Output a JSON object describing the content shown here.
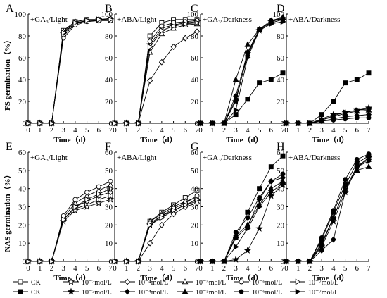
{
  "figure": {
    "ylabel_top": "FS germination（%）",
    "ylabel_bottom": "NAS germination（%）",
    "xlabel": "Time（d）",
    "x_ticks": [
      "0",
      "1",
      "2",
      "3",
      "4",
      "5",
      "6",
      "7"
    ],
    "y_ticks_top": [
      "0",
      "20",
      "40",
      "60",
      "80",
      "100"
    ],
    "y_ticks_bottom": [
      "0",
      "10",
      "20",
      "30",
      "40",
      "50",
      "60"
    ]
  },
  "legend": {
    "rows": [
      [
        {
          "marker": "open-square",
          "label": "CK"
        },
        {
          "marker": "open-star",
          "label": "10⁻³mol/L"
        },
        {
          "marker": "open-diamond",
          "label": "10⁻⁴mol/L"
        },
        {
          "marker": "open-triangle-up",
          "label": "10⁻⁵mol/L"
        },
        {
          "marker": "open-circle",
          "label": "10⁻⁶mol/L"
        },
        {
          "marker": "open-triangle-right",
          "label": "10⁻⁷mol/L"
        }
      ],
      [
        {
          "marker": "filled-square",
          "label": "CK"
        },
        {
          "marker": "filled-star",
          "label": "10⁻³mol/L"
        },
        {
          "marker": "filled-diamond",
          "label": "10⁻⁴mol/L"
        },
        {
          "marker": "filled-triangle-up",
          "label": "10⁻⁵mol/L"
        },
        {
          "marker": "filled-circle",
          "label": "10⁻⁶mol/L"
        },
        {
          "marker": "filled-triangle-right",
          "label": "10⁻⁷mol/L"
        }
      ]
    ]
  },
  "chart_data": [
    {
      "panel": "A",
      "title": "+GA₃/Light",
      "type": "line",
      "ylim": [
        0,
        100
      ],
      "xlim": [
        0,
        7
      ],
      "x": [
        0,
        1,
        2,
        3,
        4,
        5,
        6,
        7
      ],
      "series": [
        {
          "marker": "open-square",
          "values": [
            0,
            0,
            0,
            85,
            93,
            95,
            95,
            95
          ]
        },
        {
          "marker": "open-star",
          "values": [
            0,
            0,
            0,
            82,
            92,
            94,
            95,
            95
          ]
        },
        {
          "marker": "open-diamond",
          "values": [
            0,
            0,
            0,
            80,
            91,
            94,
            94,
            95
          ]
        },
        {
          "marker": "open-triangle-up",
          "values": [
            0,
            0,
            0,
            84,
            93,
            95,
            95,
            96
          ]
        },
        {
          "marker": "open-circle",
          "values": [
            0,
            0,
            0,
            78,
            90,
            93,
            94,
            94
          ]
        },
        {
          "marker": "open-triangle-right",
          "values": [
            0,
            0,
            0,
            83,
            92,
            94,
            95,
            95
          ]
        }
      ]
    },
    {
      "panel": "B",
      "title": "+ABA/Light",
      "type": "line",
      "ylim": [
        0,
        100
      ],
      "xlim": [
        0,
        7
      ],
      "x": [
        0,
        1,
        2,
        3,
        4,
        5,
        6,
        7
      ],
      "series": [
        {
          "marker": "open-square",
          "values": [
            0,
            0,
            0,
            80,
            92,
            95,
            95,
            95
          ]
        },
        {
          "marker": "open-star",
          "values": [
            0,
            0,
            0,
            72,
            87,
            90,
            92,
            93
          ]
        },
        {
          "marker": "open-diamond",
          "values": [
            0,
            0,
            0,
            39,
            56,
            70,
            78,
            84
          ]
        },
        {
          "marker": "open-triangle-up",
          "values": [
            0,
            0,
            0,
            65,
            82,
            87,
            90,
            91
          ]
        },
        {
          "marker": "open-circle",
          "values": [
            0,
            0,
            0,
            75,
            89,
            92,
            93,
            94
          ]
        },
        {
          "marker": "open-triangle-right",
          "values": [
            0,
            0,
            0,
            70,
            85,
            89,
            91,
            92
          ]
        }
      ]
    },
    {
      "panel": "C",
      "title": "+GA₃/Darkness",
      "type": "line",
      "ylim": [
        0,
        100
      ],
      "xlim": [
        0,
        7
      ],
      "x": [
        0,
        1,
        2,
        3,
        4,
        5,
        6,
        7
      ],
      "series": [
        {
          "marker": "filled-square",
          "values": [
            0,
            0,
            0,
            8,
            22,
            37,
            40,
            46
          ]
        },
        {
          "marker": "filled-star",
          "values": [
            0,
            0,
            0,
            20,
            64,
            85,
            93,
            96
          ]
        },
        {
          "marker": "filled-diamond",
          "values": [
            0,
            0,
            0,
            25,
            65,
            86,
            92,
            95
          ]
        },
        {
          "marker": "filled-triangle-up",
          "values": [
            0,
            0,
            0,
            40,
            72,
            86,
            94,
            97
          ]
        },
        {
          "marker": "filled-circle",
          "values": [
            0,
            0,
            0,
            22,
            62,
            86,
            94,
            96
          ]
        },
        {
          "marker": "filled-triangle-right",
          "values": [
            0,
            0,
            0,
            12,
            60,
            85,
            91,
            93
          ]
        }
      ]
    },
    {
      "panel": "D",
      "title": "+ABA/Darkness",
      "type": "line",
      "ylim": [
        0,
        100
      ],
      "xlim": [
        0,
        7
      ],
      "x": [
        0,
        1,
        2,
        3,
        4,
        5,
        6,
        7
      ],
      "series": [
        {
          "marker": "filled-square",
          "values": [
            0,
            0,
            0,
            8,
            20,
            37,
            40,
            46
          ]
        },
        {
          "marker": "filled-star",
          "values": [
            0,
            0,
            0,
            4,
            8,
            10,
            12,
            14
          ]
        },
        {
          "marker": "filled-diamond",
          "values": [
            0,
            0,
            0,
            2,
            4,
            6,
            7,
            8
          ]
        },
        {
          "marker": "filled-triangle-up",
          "values": [
            0,
            0,
            0,
            3,
            6,
            9,
            11,
            12
          ]
        },
        {
          "marker": "filled-circle",
          "values": [
            0,
            0,
            0,
            2,
            3,
            4,
            5,
            5
          ]
        },
        {
          "marker": "filled-triangle-right",
          "values": [
            0,
            0,
            0,
            3,
            7,
            10,
            12,
            13
          ]
        }
      ]
    },
    {
      "panel": "E",
      "title": "+GA₃/Light",
      "type": "line",
      "ylim": [
        0,
        60
      ],
      "xlim": [
        0,
        7
      ],
      "x": [
        0,
        1,
        2,
        3,
        4,
        5,
        6,
        7
      ],
      "series": [
        {
          "marker": "open-square",
          "values": [
            0,
            0,
            0,
            23,
            29,
            31,
            34,
            36
          ]
        },
        {
          "marker": "open-star",
          "values": [
            0,
            0,
            0,
            22,
            28,
            30,
            32,
            34
          ]
        },
        {
          "marker": "open-diamond",
          "values": [
            0,
            0,
            0,
            23,
            30,
            33,
            36,
            38
          ]
        },
        {
          "marker": "open-triangle-up",
          "values": [
            0,
            0,
            0,
            24,
            32,
            36,
            39,
            42
          ]
        },
        {
          "marker": "open-circle",
          "values": [
            0,
            0,
            0,
            25,
            34,
            38,
            41,
            44
          ]
        },
        {
          "marker": "open-triangle-right",
          "values": [
            0,
            0,
            0,
            23,
            30,
            34,
            37,
            40
          ]
        }
      ]
    },
    {
      "panel": "F",
      "title": "+ABA/Light",
      "type": "line",
      "ylim": [
        0,
        60
      ],
      "xlim": [
        0,
        7
      ],
      "x": [
        0,
        1,
        2,
        3,
        4,
        5,
        6,
        7
      ],
      "series": [
        {
          "marker": "open-square",
          "values": [
            0,
            0,
            0,
            22,
            27,
            31,
            35,
            39
          ]
        },
        {
          "marker": "open-star",
          "values": [
            0,
            0,
            0,
            20,
            25,
            28,
            31,
            33
          ]
        },
        {
          "marker": "open-diamond",
          "values": [
            0,
            0,
            0,
            10,
            20,
            26,
            30,
            32
          ]
        },
        {
          "marker": "open-triangle-up",
          "values": [
            0,
            0,
            0,
            22,
            26,
            30,
            33,
            35
          ]
        },
        {
          "marker": "open-circle",
          "values": [
            0,
            0,
            0,
            21,
            25,
            29,
            32,
            36
          ]
        },
        {
          "marker": "open-triangle-right",
          "values": [
            0,
            0,
            0,
            20,
            24,
            28,
            31,
            34
          ]
        }
      ]
    },
    {
      "panel": "G",
      "title": "+GA₃/Darkness",
      "type": "line",
      "ylim": [
        0,
        60
      ],
      "xlim": [
        0,
        7
      ],
      "x": [
        0,
        1,
        2,
        3,
        4,
        5,
        6,
        7
      ],
      "series": [
        {
          "marker": "filled-square",
          "values": [
            0,
            0,
            0,
            13,
            27,
            40,
            52,
            58
          ]
        },
        {
          "marker": "filled-star",
          "values": [
            0,
            0,
            0,
            1,
            6,
            18,
            36,
            42
          ]
        },
        {
          "marker": "filled-diamond",
          "values": [
            0,
            0,
            0,
            13,
            19,
            34,
            44,
            46
          ]
        },
        {
          "marker": "filled-triangle-up",
          "values": [
            0,
            0,
            0,
            14,
            20,
            31,
            40,
            44
          ]
        },
        {
          "marker": "filled-circle",
          "values": [
            0,
            0,
            0,
            16,
            24,
            35,
            44,
            48
          ]
        },
        {
          "marker": "filled-triangle-right",
          "values": [
            0,
            0,
            0,
            8,
            18,
            30,
            38,
            43
          ]
        }
      ]
    },
    {
      "panel": "H",
      "title": "+ABA/Darkness",
      "type": "line",
      "ylim": [
        0,
        60
      ],
      "xlim": [
        0,
        7
      ],
      "x": [
        0,
        1,
        2,
        3,
        4,
        5,
        6,
        7
      ],
      "series": [
        {
          "marker": "filled-square",
          "values": [
            0,
            0,
            0,
            12,
            27,
            42,
            54,
            58
          ]
        },
        {
          "marker": "filled-star",
          "values": [
            0,
            0,
            0,
            8,
            22,
            38,
            52,
            57
          ]
        },
        {
          "marker": "filled-diamond",
          "values": [
            0,
            0,
            0,
            6,
            12,
            38,
            52,
            56
          ]
        },
        {
          "marker": "filled-triangle-up",
          "values": [
            0,
            0,
            0,
            10,
            24,
            40,
            50,
            52
          ]
        },
        {
          "marker": "filled-circle",
          "values": [
            0,
            0,
            0,
            13,
            28,
            45,
            56,
            59
          ]
        },
        {
          "marker": "filled-triangle-right",
          "values": [
            0,
            0,
            0,
            9,
            24,
            40,
            52,
            55
          ]
        }
      ]
    }
  ]
}
